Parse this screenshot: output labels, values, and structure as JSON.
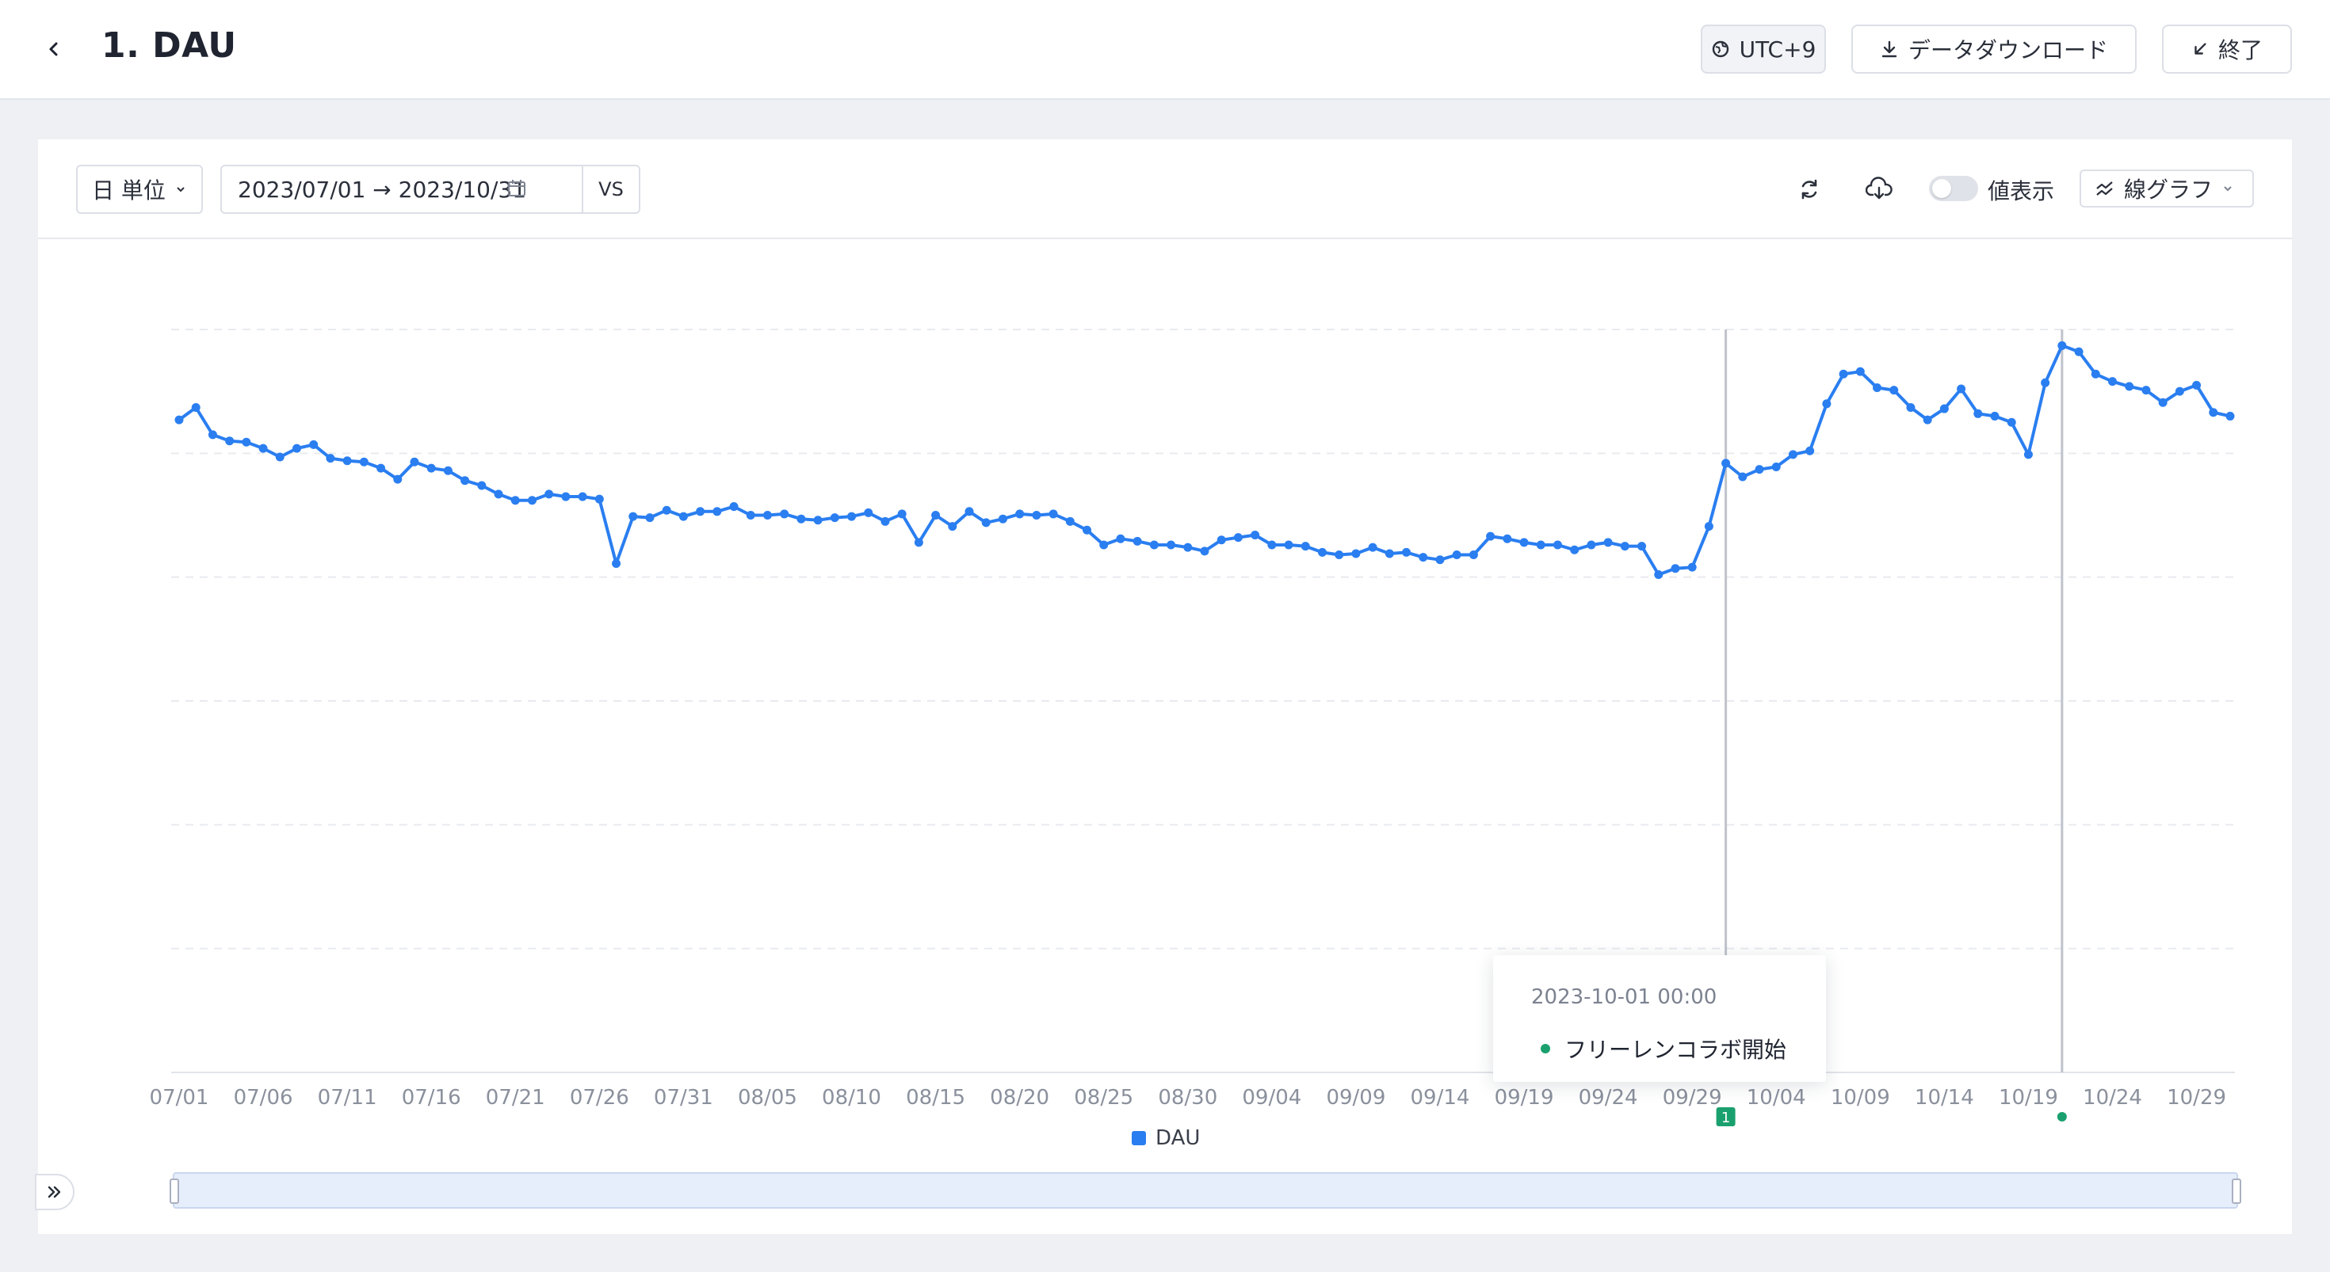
{
  "header": {
    "title": "1. DAU",
    "timezone_label": "UTC+9",
    "download_label": "データダウンロード",
    "exit_label": "終了"
  },
  "toolbar": {
    "unit_label": "日 単位",
    "date_range": "2023/07/01 → 2023/10/31",
    "vs_label": "VS",
    "show_values_label": "値表示",
    "show_values_on": false,
    "chart_type_label": "線グラフ"
  },
  "tooltip": {
    "date": "2023-10-01 00:00",
    "event": "フリーレンコラボ開始",
    "dot_color": "#1aa06e"
  },
  "legend": {
    "label": "DAU",
    "color": "#2a7ef0"
  },
  "chart_data": {
    "type": "line",
    "title": "",
    "xlabel": "",
    "ylabel": "",
    "y_axis_labels_shown": false,
    "ylim": [
      0,
      600
    ],
    "grid": true,
    "legend": "bottom",
    "x_tick_labels": [
      "07/01",
      "07/06",
      "07/11",
      "07/16",
      "07/21",
      "07/26",
      "07/31",
      "08/05",
      "08/10",
      "08/15",
      "08/20",
      "08/25",
      "08/30",
      "09/04",
      "09/09",
      "09/14",
      "09/19",
      "09/24",
      "09/29",
      "10/04",
      "10/09",
      "10/14",
      "10/19",
      "10/24",
      "10/29"
    ],
    "x_start_label": "07/01",
    "series": [
      {
        "name": "DAU",
        "color": "#2a7ef0",
        "values": [
          527,
          537,
          515,
          510,
          509,
          504,
          497,
          504,
          507,
          496,
          494,
          493,
          488,
          479,
          493,
          488,
          486,
          478,
          474,
          467,
          462,
          462,
          467,
          465,
          465,
          463,
          411,
          449,
          448,
          454,
          449,
          453,
          453,
          457,
          450,
          450,
          451,
          447,
          446,
          448,
          449,
          452,
          445,
          451,
          428,
          450,
          441,
          453,
          444,
          447,
          451,
          450,
          451,
          445,
          438,
          426,
          431,
          429,
          426,
          426,
          424,
          421,
          430,
          432,
          434,
          426,
          426,
          425,
          420,
          418,
          419,
          424,
          419,
          420,
          416,
          414,
          418,
          418,
          433,
          431,
          428,
          426,
          426,
          422,
          426,
          428,
          425,
          425,
          402,
          407,
          408,
          441,
          492,
          481,
          487,
          489,
          499,
          502,
          540,
          564,
          566,
          553,
          551,
          537,
          527,
          536,
          552,
          532,
          530,
          525,
          499,
          557,
          587,
          582,
          564,
          558,
          554,
          551,
          541,
          550,
          555,
          533,
          530
        ]
      }
    ],
    "annotations": [
      {
        "x_label": "10/01",
        "marker_label": "1",
        "marker_color": "#1aa06e"
      },
      {
        "x_label": "10/21",
        "marker_label": "",
        "marker_color": "#1aa06e"
      }
    ]
  }
}
